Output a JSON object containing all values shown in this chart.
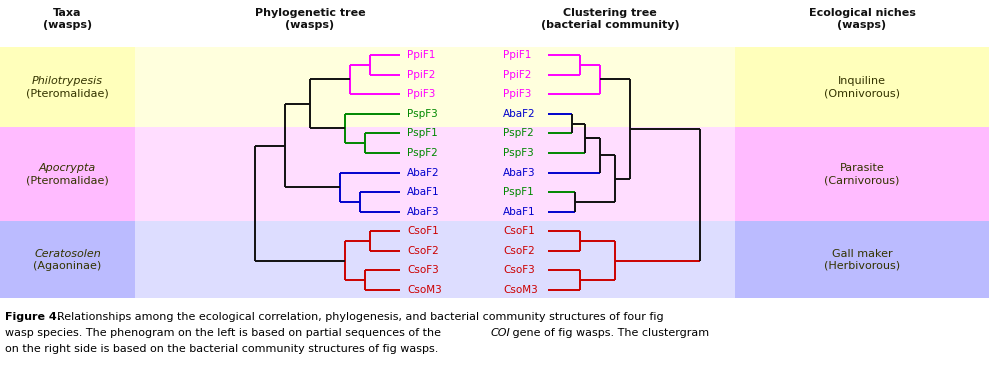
{
  "fig_width": 9.89,
  "fig_height": 3.9,
  "bg_color": "#ffffff",
  "phylo_leaves": [
    {
      "name": "PpiF1",
      "row": 13,
      "color": "#ff00ff"
    },
    {
      "name": "PpiF2",
      "row": 12,
      "color": "#ff00ff"
    },
    {
      "name": "PpiF3",
      "row": 11,
      "color": "#ff00ff"
    },
    {
      "name": "PspF3",
      "row": 10,
      "color": "#008800"
    },
    {
      "name": "PspF1",
      "row": 9,
      "color": "#008800"
    },
    {
      "name": "PspF2",
      "row": 8,
      "color": "#008800"
    },
    {
      "name": "AbaF2",
      "row": 7,
      "color": "#0000cc"
    },
    {
      "name": "AbaF1",
      "row": 6,
      "color": "#0000cc"
    },
    {
      "name": "AbaF3",
      "row": 5,
      "color": "#0000cc"
    },
    {
      "name": "CsoF1",
      "row": 4,
      "color": "#cc0000"
    },
    {
      "name": "CsoF2",
      "row": 3,
      "color": "#cc0000"
    },
    {
      "name": "CsoF3",
      "row": 2,
      "color": "#cc0000"
    },
    {
      "name": "CsoM3",
      "row": 1,
      "color": "#cc0000"
    }
  ],
  "cluster_leaves": [
    {
      "name": "PpiF1",
      "row": 13,
      "color": "#ff00ff"
    },
    {
      "name": "PpiF2",
      "row": 12,
      "color": "#ff00ff"
    },
    {
      "name": "PpiF3",
      "row": 11,
      "color": "#ff00ff"
    },
    {
      "name": "AbaF2",
      "row": 10,
      "color": "#0000cc"
    },
    {
      "name": "PspF2",
      "row": 9,
      "color": "#008800"
    },
    {
      "name": "PspF3",
      "row": 8,
      "color": "#008800"
    },
    {
      "name": "AbaF3",
      "row": 7,
      "color": "#0000cc"
    },
    {
      "name": "PspF1",
      "row": 6,
      "color": "#008800"
    },
    {
      "name": "AbaF1",
      "row": 5,
      "color": "#0000cc"
    },
    {
      "name": "CsoF1",
      "row": 4,
      "color": "#cc0000"
    },
    {
      "name": "CsoF2",
      "row": 3,
      "color": "#cc0000"
    },
    {
      "name": "CsoF3",
      "row": 2,
      "color": "#cc0000"
    },
    {
      "name": "CsoM3",
      "row": 1,
      "color": "#cc0000"
    }
  ],
  "colors": {
    "ppi": "#ff00ff",
    "psp": "#008800",
    "aba": "#0000cc",
    "cso": "#cc0000",
    "dark": "#111111"
  },
  "bg": {
    "yellow": "#ffffbb",
    "pink": "#ffbbff",
    "lavender": "#bbbbff",
    "yellow_mid": "#ffffdd",
    "pink_mid": "#ffddff",
    "lavender_mid": "#ddddff"
  }
}
